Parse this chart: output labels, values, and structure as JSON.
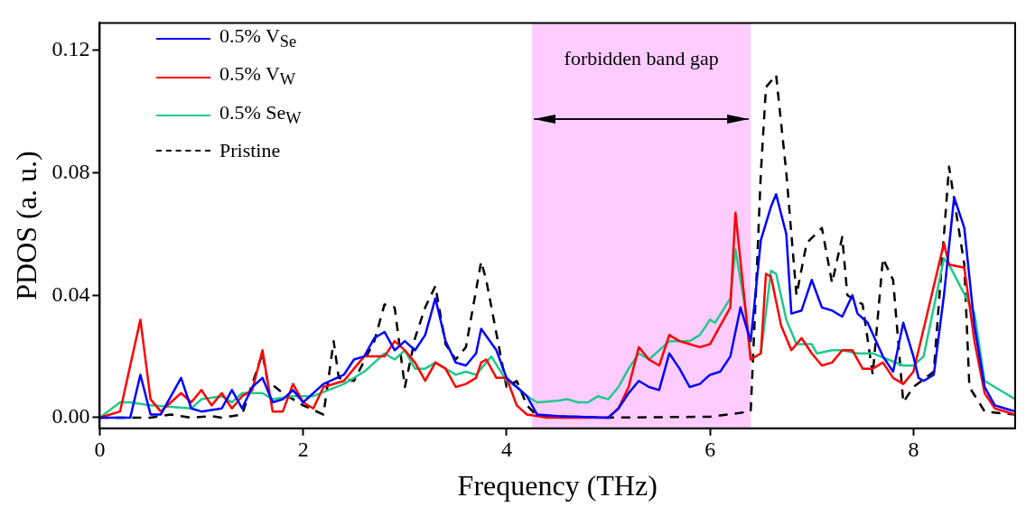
{
  "chart_data": {
    "type": "line",
    "xlabel": "Frequency (THz)",
    "ylabel": "PDOS (a. u.)",
    "xlim": [
      0,
      9
    ],
    "xticks": [
      0,
      2,
      4,
      6,
      8
    ],
    "ylim": [
      -0.0035,
      0.129
    ],
    "yticks": [
      {
        "value": 0,
        "label": "0.00"
      },
      {
        "value": 0.04,
        "label": "0.04"
      },
      {
        "value": 0.08,
        "label": "0.08"
      },
      {
        "value": 0.12,
        "label": "0.12"
      }
    ],
    "grid": false,
    "legend": "top left",
    "marker": "none",
    "bands": [
      {
        "axis": "x",
        "from": 4.25,
        "to": 6.4,
        "label": "forbidden band gap",
        "color": "#ffccff"
      }
    ],
    "series": [
      {
        "name": "0.5% V$_{Se}$",
        "color": "#0000ff",
        "line_style": "solid",
        "x": [
          0,
          0.3,
          0.4,
          0.5,
          0.6,
          0.8,
          0.9,
          1.0,
          1.2,
          1.3,
          1.4,
          1.5,
          1.6,
          1.7,
          1.8,
          1.9,
          2.0,
          2.2,
          2.4,
          2.5,
          2.6,
          2.7,
          2.8,
          2.9,
          3.0,
          3.1,
          3.2,
          3.3,
          3.4,
          3.5,
          3.6,
          3.7,
          3.75,
          3.9,
          4.0,
          4.1,
          4.2,
          4.3,
          4.5,
          5.0,
          5.1,
          5.2,
          5.3,
          5.4,
          5.5,
          5.6,
          5.7,
          5.8,
          5.9,
          6.0,
          6.1,
          6.2,
          6.3,
          6.4,
          6.5,
          6.6,
          6.65,
          6.75,
          6.8,
          6.9,
          7.0,
          7.1,
          7.2,
          7.3,
          7.4,
          7.45,
          7.55,
          7.7,
          7.8,
          7.9,
          8.0,
          8.05,
          8.1,
          8.2,
          8.3,
          8.4,
          8.5,
          8.6,
          8.7,
          8.8,
          8.9,
          9.0
        ],
        "values": [
          0,
          0,
          0.014,
          0.001,
          0.001,
          0.013,
          0.003,
          0.002,
          0.003,
          0.009,
          0.003,
          0.01,
          0.013,
          0.005,
          0.006,
          0.009,
          0.005,
          0.011,
          0.014,
          0.019,
          0.02,
          0.026,
          0.028,
          0.022,
          0.025,
          0.022,
          0.027,
          0.039,
          0.025,
          0.018,
          0.017,
          0.021,
          0.029,
          0.022,
          0.013,
          0.01,
          0.007,
          0.001,
          0.0005,
          0,
          0.003,
          0.008,
          0.012,
          0.01,
          0.009,
          0.021,
          0.016,
          0.01,
          0.011,
          0.014,
          0.015,
          0.02,
          0.036,
          0.025,
          0.058,
          0.069,
          0.073,
          0.06,
          0.034,
          0.035,
          0.045,
          0.036,
          0.035,
          0.033,
          0.04,
          0.034,
          0.031,
          0.02,
          0.015,
          0.031,
          0.02,
          0.013,
          0.012,
          0.014,
          0.04,
          0.072,
          0.062,
          0.03,
          0.01,
          0.004,
          0.003,
          0.002
        ]
      },
      {
        "name": "0.5% V$_{W}$",
        "color": "#ff0000",
        "line_style": "solid",
        "x": [
          0,
          0.2,
          0.4,
          0.5,
          0.6,
          0.8,
          0.9,
          1.0,
          1.1,
          1.2,
          1.3,
          1.4,
          1.5,
          1.6,
          1.7,
          1.8,
          1.9,
          2.0,
          2.1,
          2.2,
          2.4,
          2.5,
          2.6,
          2.8,
          2.9,
          3.0,
          3.1,
          3.2,
          3.3,
          3.4,
          3.5,
          3.6,
          3.7,
          3.75,
          3.8,
          3.9,
          4.0,
          4.1,
          4.2,
          4.4,
          5.0,
          5.1,
          5.2,
          5.3,
          5.4,
          5.5,
          5.6,
          5.7,
          5.8,
          5.9,
          6.0,
          6.1,
          6.2,
          6.25,
          6.4,
          6.5,
          6.55,
          6.6,
          6.7,
          6.8,
          6.9,
          7.0,
          7.1,
          7.2,
          7.3,
          7.4,
          7.5,
          7.6,
          7.7,
          7.8,
          7.9,
          8.0,
          8.3,
          8.35,
          8.5,
          8.6,
          8.7,
          8.8,
          9.0
        ],
        "values": [
          0,
          0.002,
          0.032,
          0.006,
          0.002,
          0.008,
          0.005,
          0.009,
          0.004,
          0.008,
          0.003,
          0.007,
          0.009,
          0.022,
          0.002,
          0.002,
          0.011,
          0.005,
          0.003,
          0.01,
          0.012,
          0.016,
          0.02,
          0.02,
          0.025,
          0.022,
          0.018,
          0.012,
          0.018,
          0.016,
          0.01,
          0.011,
          0.013,
          0.018,
          0.019,
          0.013,
          0.013,
          0.004,
          0.001,
          0,
          0,
          0.003,
          0.01,
          0.023,
          0.019,
          0.017,
          0.027,
          0.025,
          0.024,
          0.023,
          0.024,
          0.03,
          0.036,
          0.067,
          0.019,
          0.021,
          0.047,
          0.046,
          0.03,
          0.022,
          0.026,
          0.021,
          0.017,
          0.018,
          0.022,
          0.022,
          0.016,
          0.016,
          0.018,
          0.013,
          0.011,
          0.015,
          0.057,
          0.05,
          0.049,
          0.025,
          0.008,
          0.003,
          0.001
        ]
      },
      {
        "name": "0.5% Se$_{W}$",
        "color": "#1fc98b",
        "line_style": "solid",
        "x": [
          0,
          0.2,
          0.3,
          0.5,
          0.9,
          1.0,
          1.2,
          1.3,
          1.4,
          1.6,
          1.7,
          1.9,
          2.1,
          2.4,
          2.6,
          2.8,
          2.9,
          3.0,
          3.1,
          3.2,
          3.3,
          3.4,
          3.5,
          3.6,
          3.7,
          3.8,
          3.85,
          4.0,
          4.1,
          4.2,
          4.3,
          4.5,
          4.6,
          4.7,
          4.8,
          4.9,
          5.0,
          5.1,
          5.2,
          5.3,
          5.4,
          5.5,
          5.6,
          5.7,
          5.8,
          5.9,
          6.0,
          6.05,
          6.2,
          6.25,
          6.35,
          6.4,
          6.5,
          6.6,
          6.65,
          6.75,
          6.85,
          7.0,
          7.05,
          7.2,
          7.3,
          7.45,
          7.6,
          7.75,
          7.9,
          8.0,
          8.1,
          8.3,
          8.35,
          8.6,
          8.7,
          8.9,
          9.0
        ],
        "values": [
          0,
          0.005,
          0.005,
          0.004,
          0.003,
          0.006,
          0.007,
          0.005,
          0.008,
          0.008,
          0.006,
          0.007,
          0.007,
          0.011,
          0.015,
          0.021,
          0.019,
          0.022,
          0.016,
          0.016,
          0.018,
          0.016,
          0.014,
          0.015,
          0.014,
          0.018,
          0.02,
          0.012,
          0.01,
          0.007,
          0.005,
          0.0055,
          0.006,
          0.005,
          0.005,
          0.007,
          0.006,
          0.01,
          0.016,
          0.021,
          0.019,
          0.022,
          0.025,
          0.025,
          0.025,
          0.027,
          0.032,
          0.031,
          0.039,
          0.055,
          0.035,
          0.019,
          0.021,
          0.048,
          0.047,
          0.032,
          0.024,
          0.024,
          0.021,
          0.022,
          0.022,
          0.021,
          0.021,
          0.019,
          0.017,
          0.017,
          0.02,
          0.052,
          0.05,
          0.034,
          0.012,
          0.008,
          0.006
        ]
      },
      {
        "name": "Pristine",
        "color": "#000000",
        "line_style": "dashed",
        "x": [
          0,
          0.5,
          0.7,
          0.9,
          1.1,
          1.2,
          1.4,
          1.6,
          1.65,
          1.8,
          2.0,
          2.2,
          2.3,
          2.35,
          2.5,
          2.7,
          2.8,
          2.9,
          3.0,
          3.1,
          3.2,
          3.3,
          3.4,
          3.5,
          3.6,
          3.75,
          3.8,
          4.0,
          4.1,
          4.2,
          4.3,
          5.0,
          6.0,
          6.4,
          6.45,
          6.5,
          6.55,
          6.65,
          6.75,
          6.85,
          6.95,
          7.1,
          7.2,
          7.3,
          7.35,
          7.5,
          7.6,
          7.7,
          7.8,
          7.9,
          8.0,
          8.2,
          8.35,
          8.5,
          8.55,
          8.7,
          9.0
        ],
        "values": [
          0,
          0,
          0.001,
          0,
          0.0005,
          0,
          0.001,
          0.021,
          0.012,
          0.008,
          0.004,
          0.001,
          0.025,
          0.013,
          0.012,
          0.025,
          0.037,
          0.036,
          0.01,
          0.026,
          0.036,
          0.043,
          0.024,
          0.019,
          0.023,
          0.051,
          0.045,
          0.01,
          0.012,
          0.004,
          0.0005,
          0,
          0.0003,
          0.002,
          0.04,
          0.08,
          0.108,
          0.112,
          0.08,
          0.04,
          0.057,
          0.062,
          0.044,
          0.059,
          0.04,
          0.037,
          0.014,
          0.052,
          0.045,
          0.005,
          0.01,
          0.015,
          0.082,
          0.05,
          0.01,
          0.002,
          0.001
        ]
      }
    ]
  }
}
